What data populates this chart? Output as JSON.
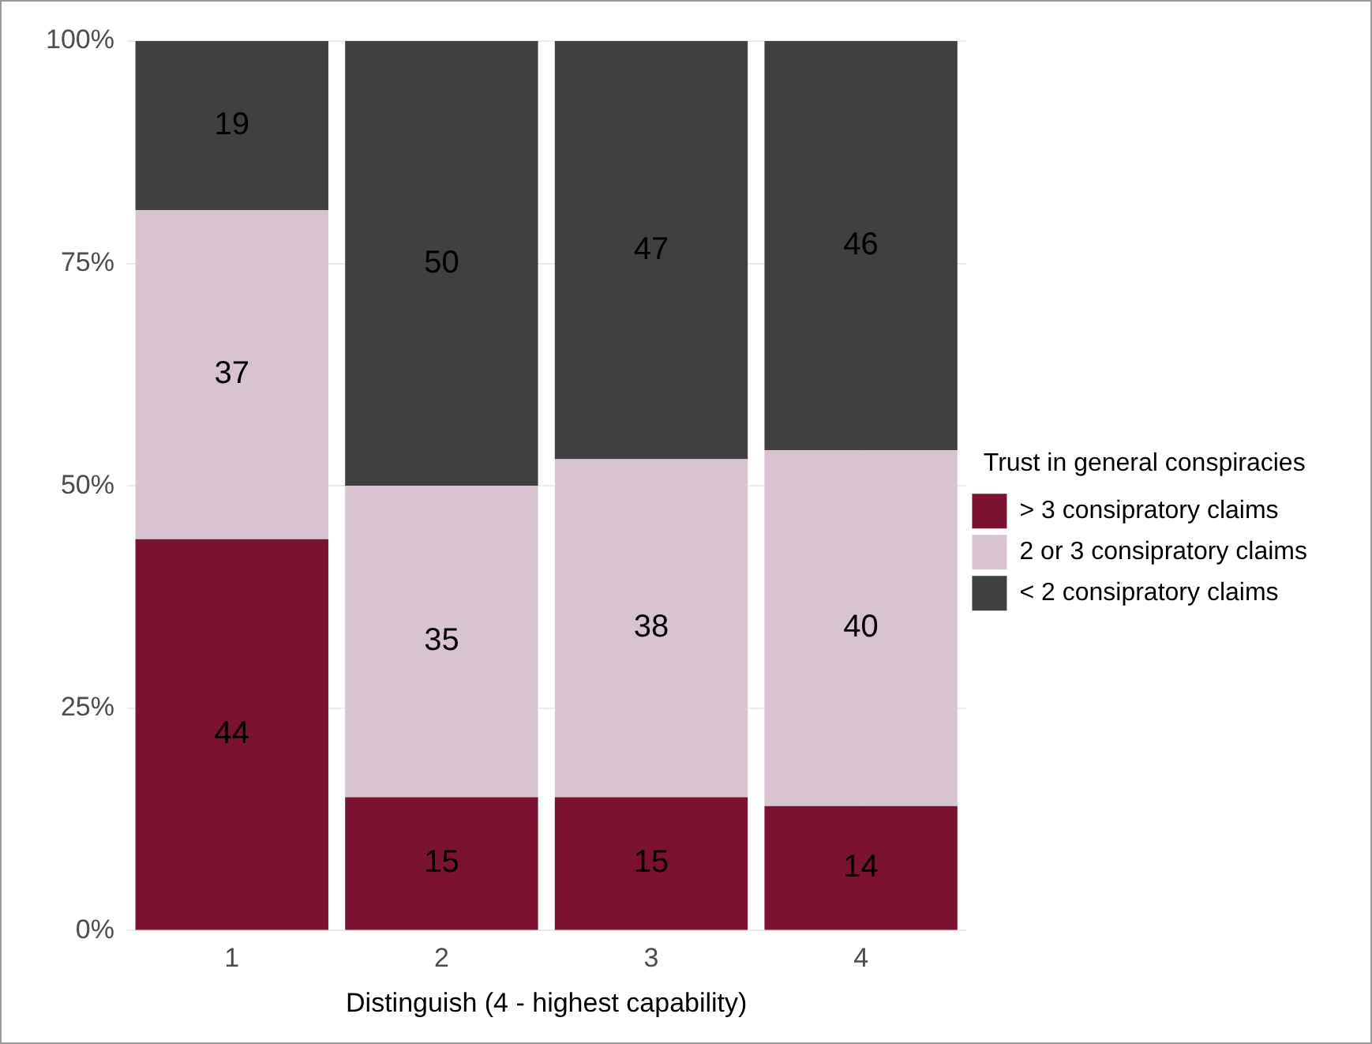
{
  "chart_data": {
    "type": "bar",
    "stacked": true,
    "xlabel": "Distinguish (4 - highest capability)",
    "legend_title": "Trust in general conspiracies",
    "categories": [
      "1",
      "2",
      "3",
      "4"
    ],
    "series": [
      {
        "name": "> 3 consipratory claims",
        "color": "#7b1232",
        "values": [
          44,
          15,
          15,
          14
        ]
      },
      {
        "name": "2 or 3 consipratory claims",
        "color": "#d8c4d1",
        "values": [
          37,
          35,
          38,
          40
        ]
      },
      {
        "name": "< 2 consipratory claims",
        "color": "#404040",
        "values": [
          19,
          50,
          47,
          46
        ]
      }
    ],
    "ylim": [
      0,
      100
    ],
    "yticks": [
      {
        "value": 0,
        "label": "0%"
      },
      {
        "value": 25,
        "label": "25%"
      },
      {
        "value": 50,
        "label": "50%"
      },
      {
        "value": 75,
        "label": "75%"
      },
      {
        "value": 100,
        "label": "100%"
      }
    ],
    "grid": true,
    "legend": "right",
    "data_labels": true
  }
}
